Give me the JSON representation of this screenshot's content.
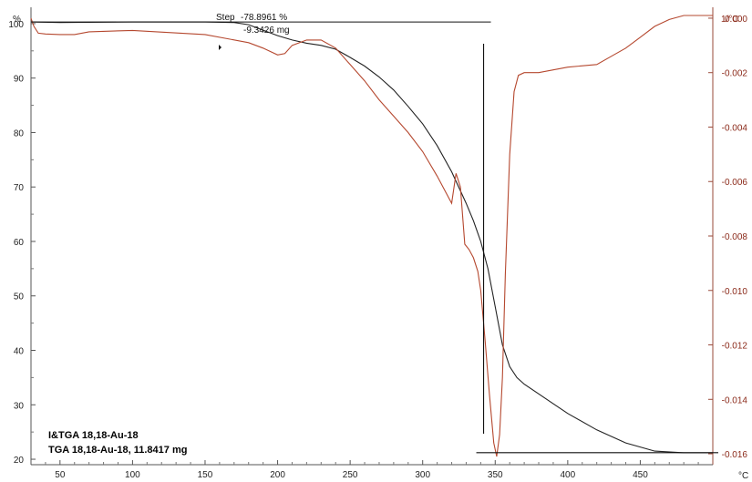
{
  "chart_data": {
    "type": "line",
    "title": "",
    "xlabel": "",
    "ylabel": "",
    "x_unit": "°C",
    "y_unit_left": "%",
    "y_unit_right": "1/°C",
    "xlim": [
      30,
      500
    ],
    "ylim_left": [
      19,
      103
    ],
    "ylim_right": [
      -0.0164,
      0.0004
    ],
    "x_ticks": [
      50,
      100,
      150,
      200,
      250,
      300,
      350,
      400,
      450
    ],
    "y_ticks_left": [
      20,
      30,
      40,
      50,
      60,
      70,
      80,
      90,
      100
    ],
    "y_ticks_right": [
      "0.000",
      "-0.002",
      "-0.004",
      "-0.006",
      "-0.008",
      "-0.010",
      "-0.012",
      "-0.014",
      "-0.016"
    ],
    "grid": false,
    "legend": {
      "placement": "bottom-left",
      "entries": [
        "I&TGA 18,18-Au-18",
        "TGA 18,18-Au-18, 11.8417 mg"
      ]
    },
    "colors": {
      "tga": "#222222",
      "dtg": "#b5482f",
      "right_axis": "#8b2a1a"
    },
    "annotation": {
      "label": "Step",
      "percent": "-78.8961 %",
      "mass": "-9.3426 mg",
      "x_at": 342,
      "upper_level": 100.3,
      "lower_level": 21.2
    },
    "series": [
      {
        "axis": "left",
        "x": [
          30,
          50,
          100,
          150,
          170,
          180,
          190,
          200,
          210,
          220,
          230,
          240,
          250,
          260,
          270,
          280,
          290,
          300,
          310,
          320,
          330,
          335,
          340,
          345,
          350,
          355,
          360,
          365,
          370,
          380,
          390,
          400,
          420,
          440,
          460,
          480,
          500
        ],
        "y": [
          100.3,
          100.2,
          100.3,
          100.3,
          100.2,
          99.8,
          98.8,
          97.8,
          97.0,
          96.4,
          96.0,
          95.3,
          93.8,
          92.2,
          90.2,
          87.8,
          84.8,
          81.6,
          77.6,
          72.8,
          67.0,
          63.8,
          60.0,
          55.0,
          48.0,
          41.0,
          37.0,
          35.0,
          33.8,
          32.0,
          30.2,
          28.4,
          25.4,
          23.0,
          21.5,
          21.2,
          21.2
        ]
      },
      {
        "axis": "right",
        "x": [
          30,
          32,
          35,
          40,
          50,
          60,
          70,
          100,
          150,
          180,
          190,
          200,
          205,
          210,
          220,
          230,
          240,
          250,
          260,
          270,
          280,
          290,
          300,
          310,
          320,
          323,
          326,
          329,
          332,
          335,
          338,
          340,
          343,
          346,
          349,
          351,
          353,
          355,
          357,
          360,
          363,
          366,
          370,
          380,
          400,
          420,
          430,
          440,
          450,
          460,
          470,
          480,
          490,
          500
        ],
        "y": [
          0.0,
          -0.0003,
          -0.00055,
          -0.00058,
          -0.0006,
          -0.0006,
          -0.0005,
          -0.00045,
          -0.0006,
          -0.0009,
          -0.0011,
          -0.00135,
          -0.0013,
          -0.001,
          -0.0008,
          -0.0008,
          -0.0011,
          -0.0017,
          -0.0023,
          -0.003,
          -0.0036,
          -0.0042,
          -0.0049,
          -0.0058,
          -0.0068,
          -0.0057,
          -0.0062,
          -0.0083,
          -0.0085,
          -0.0088,
          -0.0093,
          -0.01,
          -0.0118,
          -0.0138,
          -0.0156,
          -0.0161,
          -0.0153,
          -0.0132,
          -0.0094,
          -0.005,
          -0.0027,
          -0.0021,
          -0.002,
          -0.002,
          -0.0018,
          -0.0017,
          -0.0014,
          -0.0011,
          -0.0007,
          -0.0003,
          -5e-05,
          0.0001,
          0.0001,
          0.0001
        ]
      }
    ]
  }
}
